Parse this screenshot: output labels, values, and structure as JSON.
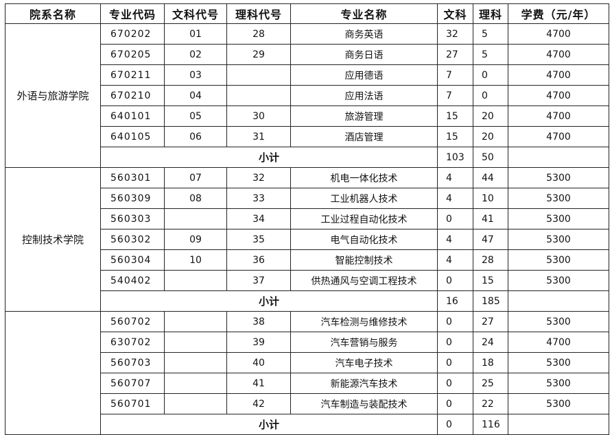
{
  "headers": [
    "院系名称",
    "专业代码",
    "文科代号",
    "理科代号",
    "专业名称",
    "文科",
    "理科",
    "学费（元/年）"
  ],
  "subtotal_label": "小计",
  "departments": [
    {
      "name": "外语与旅游学院",
      "rows": [
        {
          "code": "670202",
          "arts_no": "01",
          "sci_no": "28",
          "major": "商务英语",
          "arts": "32",
          "sci": "5",
          "fee": "4700"
        },
        {
          "code": "670205",
          "arts_no": "02",
          "sci_no": "29",
          "major": "商务日语",
          "arts": "27",
          "sci": "5",
          "fee": "4700"
        },
        {
          "code": "670211",
          "arts_no": "03",
          "sci_no": "",
          "major": "应用德语",
          "arts": "7",
          "sci": "0",
          "fee": "4700"
        },
        {
          "code": "670210",
          "arts_no": "04",
          "sci_no": "",
          "major": "应用法语",
          "arts": "7",
          "sci": "0",
          "fee": "4700"
        },
        {
          "code": "640101",
          "arts_no": "05",
          "sci_no": "30",
          "major": "旅游管理",
          "arts": "15",
          "sci": "20",
          "fee": "4700"
        },
        {
          "code": "640105",
          "arts_no": "06",
          "sci_no": "31",
          "major": "酒店管理",
          "arts": "15",
          "sci": "20",
          "fee": "4700"
        }
      ],
      "subtotal": {
        "arts": "103",
        "sci": "50"
      }
    },
    {
      "name": "控制技术学院",
      "rows": [
        {
          "code": "560301",
          "arts_no": "07",
          "sci_no": "32",
          "major": "机电一体化技术",
          "arts": "4",
          "sci": "44",
          "fee": "5300"
        },
        {
          "code": "560309",
          "arts_no": "08",
          "sci_no": "33",
          "major": "工业机器人技术",
          "arts": "4",
          "sci": "10",
          "fee": "5300"
        },
        {
          "code": "560303",
          "arts_no": "",
          "sci_no": "34",
          "major": "工业过程自动化技术",
          "arts": "0",
          "sci": "41",
          "fee": "5300"
        },
        {
          "code": "560302",
          "arts_no": "09",
          "sci_no": "35",
          "major": "电气自动化技术",
          "arts": "4",
          "sci": "47",
          "fee": "5300"
        },
        {
          "code": "560304",
          "arts_no": "10",
          "sci_no": "36",
          "major": "智能控制技术",
          "arts": "4",
          "sci": "28",
          "fee": "5300"
        },
        {
          "code": "540402",
          "arts_no": "",
          "sci_no": "37",
          "major": "供热通风与空调工程技术",
          "arts": "0",
          "sci": "15",
          "fee": "5300"
        }
      ],
      "subtotal": {
        "arts": "16",
        "sci": "185"
      }
    },
    {
      "name": "",
      "rows": [
        {
          "code": "560702",
          "arts_no": "",
          "sci_no": "38",
          "major": "汽车检测与维修技术",
          "arts": "0",
          "sci": "27",
          "fee": "5300"
        },
        {
          "code": "630702",
          "arts_no": "",
          "sci_no": "39",
          "major": "汽车营销与服务",
          "arts": "0",
          "sci": "24",
          "fee": "4700"
        },
        {
          "code": "560703",
          "arts_no": "",
          "sci_no": "40",
          "major": "汽车电子技术",
          "arts": "0",
          "sci": "18",
          "fee": "5300"
        },
        {
          "code": "560707",
          "arts_no": "",
          "sci_no": "41",
          "major": "新能源汽车技术",
          "arts": "0",
          "sci": "25",
          "fee": "5300"
        },
        {
          "code": "560701",
          "arts_no": "",
          "sci_no": "42",
          "major": "汽车制造与装配技术",
          "arts": "0",
          "sci": "22",
          "fee": "5300"
        }
      ],
      "subtotal": {
        "arts": "0",
        "sci": "116"
      }
    }
  ]
}
